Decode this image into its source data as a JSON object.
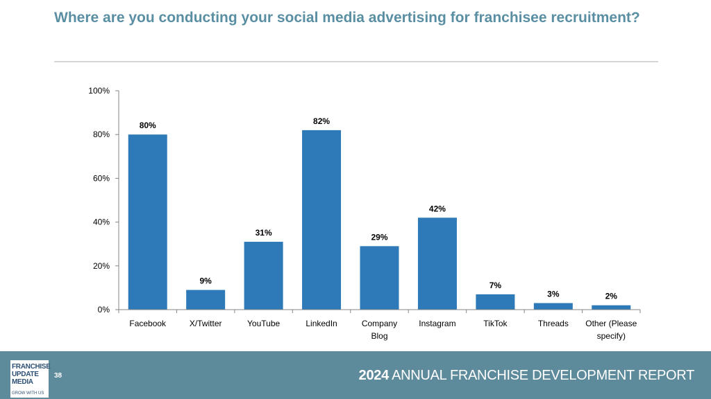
{
  "header": {
    "title": "Where are you conducting your social media advertising for franchisee recruitment?"
  },
  "chart_data": {
    "type": "bar",
    "categories": [
      "Facebook",
      "X/Twitter",
      "YouTube",
      "LinkedIn",
      "Company Blog",
      "Instagram",
      "TikTok",
      "Threads",
      "Other (Please specify)"
    ],
    "category_lines": [
      [
        "Facebook"
      ],
      [
        "X/Twitter"
      ],
      [
        "YouTube"
      ],
      [
        "LinkedIn"
      ],
      [
        "Company",
        "Blog"
      ],
      [
        "Instagram"
      ],
      [
        "TikTok"
      ],
      [
        "Threads"
      ],
      [
        "Other (Please",
        "specify)"
      ]
    ],
    "values": [
      80,
      9,
      31,
      82,
      29,
      42,
      7,
      3,
      2
    ],
    "data_labels": [
      "80%",
      "9%",
      "31%",
      "82%",
      "29%",
      "42%",
      "7%",
      "3%",
      "2%"
    ],
    "yticks": [
      "0%",
      "20%",
      "40%",
      "60%",
      "80%",
      "100%"
    ],
    "ylim": [
      0,
      100
    ],
    "bar_color": "#2e7ab8",
    "grid": false,
    "legend": "none"
  },
  "footer": {
    "page_number": "38",
    "logo_lines": [
      "FRANCHISE",
      "UPDATE",
      "MEDIA"
    ],
    "logo_tagline": "GROW WITH US",
    "report_year": "2024",
    "report_title": "ANNUAL FRANCHISE DEVELOPMENT REPORT",
    "background": "#5e8b9b"
  }
}
